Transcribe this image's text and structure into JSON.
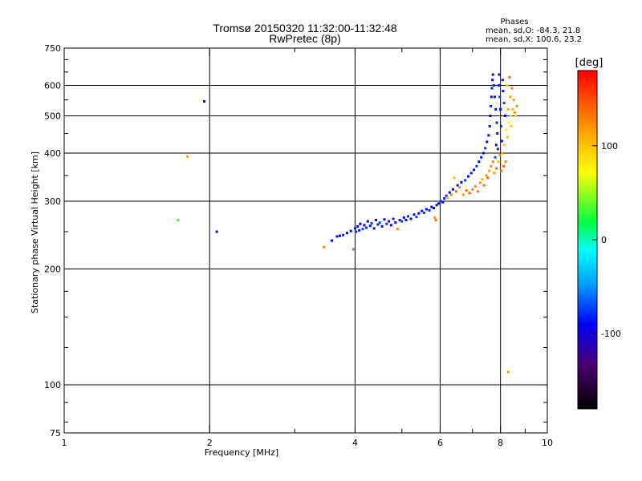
{
  "title": {
    "line1": "Tromsø 20150320 11:32:00-11:32:48",
    "line2": "RwPretec (8p)"
  },
  "phase_box": {
    "title": "Phases",
    "line_o": "mean, sd,O: -84.3, 21.8",
    "line_x": "mean, sd,X: 100.6, 23.2"
  },
  "chart_data": {
    "type": "scatter",
    "xlabel": "Frequency [MHz]",
    "ylabel": "Stationary phase Virtual Height [km]",
    "x_scale": "log",
    "y_scale": "log",
    "xlim": [
      1,
      10
    ],
    "ylim": [
      75,
      750
    ],
    "grid": true,
    "x_ticks": [
      {
        "value": 1,
        "label": "1"
      },
      {
        "value": 2,
        "label": "2"
      },
      {
        "value": 4,
        "label": "4"
      },
      {
        "value": 6,
        "label": "6"
      },
      {
        "value": 8,
        "label": "8"
      },
      {
        "value": 10,
        "label": "10"
      }
    ],
    "x_minor_ticks": [
      3,
      5,
      7,
      9
    ],
    "y_ticks": [
      {
        "value": 75,
        "label": "75"
      },
      {
        "value": 100,
        "label": "100"
      },
      {
        "value": 200,
        "label": "200"
      },
      {
        "value": 300,
        "label": "300"
      },
      {
        "value": 400,
        "label": "400"
      },
      {
        "value": 500,
        "label": "500"
      },
      {
        "value": 600,
        "label": "600"
      },
      {
        "value": 750,
        "label": "750"
      }
    ],
    "y_minor_ticks": [
      80,
      90,
      125,
      150,
      175,
      250,
      350,
      450,
      550,
      650,
      700
    ],
    "colorbar": {
      "label": "[deg]",
      "min": -180,
      "max": 180,
      "ticks": [
        {
          "value": 100,
          "label": "100"
        },
        {
          "value": 0,
          "label": "0"
        },
        {
          "value": -100,
          "label": "-100"
        }
      ]
    },
    "points": [
      {
        "x": 1.95,
        "y": 545,
        "phase": -100
      },
      {
        "x": 1.8,
        "y": 392,
        "phase": 120
      },
      {
        "x": 1.72,
        "y": 268,
        "phase": 30
      },
      {
        "x": 2.07,
        "y": 250,
        "phase": -100
      },
      {
        "x": 3.45,
        "y": 228,
        "phase": 130
      },
      {
        "x": 3.58,
        "y": 237,
        "phase": -90
      },
      {
        "x": 3.67,
        "y": 243,
        "phase": -85
      },
      {
        "x": 3.72,
        "y": 244,
        "phase": -95
      },
      {
        "x": 3.78,
        "y": 245,
        "phase": -80
      },
      {
        "x": 3.85,
        "y": 248,
        "phase": -100
      },
      {
        "x": 3.92,
        "y": 251,
        "phase": -90
      },
      {
        "x": 3.97,
        "y": 225,
        "phase": 140
      },
      {
        "x": 4.0,
        "y": 255,
        "phase": -85
      },
      {
        "x": 4.02,
        "y": 250,
        "phase": -75
      },
      {
        "x": 4.05,
        "y": 258,
        "phase": -95
      },
      {
        "x": 4.08,
        "y": 252,
        "phase": -80
      },
      {
        "x": 4.1,
        "y": 262,
        "phase": -88
      },
      {
        "x": 4.15,
        "y": 254,
        "phase": -70
      },
      {
        "x": 4.18,
        "y": 260,
        "phase": -92
      },
      {
        "x": 4.22,
        "y": 256,
        "phase": -78
      },
      {
        "x": 4.25,
        "y": 266,
        "phase": -100
      },
      {
        "x": 4.3,
        "y": 259,
        "phase": -84
      },
      {
        "x": 4.33,
        "y": 263,
        "phase": -72
      },
      {
        "x": 4.38,
        "y": 255,
        "phase": -90
      },
      {
        "x": 4.42,
        "y": 268,
        "phase": -96
      },
      {
        "x": 4.46,
        "y": 261,
        "phase": -82
      },
      {
        "x": 4.5,
        "y": 264,
        "phase": -70
      },
      {
        "x": 4.55,
        "y": 258,
        "phase": -88
      },
      {
        "x": 4.6,
        "y": 269,
        "phase": -94
      },
      {
        "x": 4.65,
        "y": 262,
        "phase": -76
      },
      {
        "x": 4.7,
        "y": 266,
        "phase": -86
      },
      {
        "x": 4.75,
        "y": 260,
        "phase": -98
      },
      {
        "x": 4.8,
        "y": 270,
        "phase": -80
      },
      {
        "x": 4.85,
        "y": 264,
        "phase": -90
      },
      {
        "x": 4.9,
        "y": 254,
        "phase": 125
      },
      {
        "x": 4.95,
        "y": 268,
        "phase": -84
      },
      {
        "x": 5.0,
        "y": 266,
        "phase": -74
      },
      {
        "x": 5.05,
        "y": 272,
        "phase": -96
      },
      {
        "x": 5.1,
        "y": 268,
        "phase": -86
      },
      {
        "x": 5.15,
        "y": 274,
        "phase": -80
      },
      {
        "x": 5.22,
        "y": 270,
        "phase": -92
      },
      {
        "x": 5.3,
        "y": 277,
        "phase": -84
      },
      {
        "x": 5.36,
        "y": 273,
        "phase": -70
      },
      {
        "x": 5.42,
        "y": 279,
        "phase": -98
      },
      {
        "x": 5.5,
        "y": 283,
        "phase": -86
      },
      {
        "x": 5.56,
        "y": 280,
        "phase": -76
      },
      {
        "x": 5.62,
        "y": 286,
        "phase": -92
      },
      {
        "x": 5.7,
        "y": 284,
        "phase": -80
      },
      {
        "x": 5.76,
        "y": 290,
        "phase": -88
      },
      {
        "x": 5.82,
        "y": 288,
        "phase": -100
      },
      {
        "x": 5.85,
        "y": 272,
        "phase": 120
      },
      {
        "x": 5.88,
        "y": 268,
        "phase": 135
      },
      {
        "x": 5.9,
        "y": 293,
        "phase": -82
      },
      {
        "x": 5.96,
        "y": 296,
        "phase": -90
      },
      {
        "x": 6.02,
        "y": 300,
        "phase": -74
      },
      {
        "x": 6.08,
        "y": 298,
        "phase": -96
      },
      {
        "x": 6.12,
        "y": 305,
        "phase": -84
      },
      {
        "x": 6.18,
        "y": 310,
        "phase": -78
      },
      {
        "x": 6.22,
        "y": 306,
        "phase": 110
      },
      {
        "x": 6.28,
        "y": 316,
        "phase": -92
      },
      {
        "x": 6.33,
        "y": 312,
        "phase": 125
      },
      {
        "x": 6.38,
        "y": 322,
        "phase": -86
      },
      {
        "x": 6.42,
        "y": 345,
        "phase": 100
      },
      {
        "x": 6.48,
        "y": 318,
        "phase": 140
      },
      {
        "x": 6.52,
        "y": 330,
        "phase": -80
      },
      {
        "x": 6.58,
        "y": 326,
        "phase": 130
      },
      {
        "x": 6.64,
        "y": 336,
        "phase": -94
      },
      {
        "x": 6.7,
        "y": 312,
        "phase": 120
      },
      {
        "x": 6.76,
        "y": 340,
        "phase": -70
      },
      {
        "x": 6.8,
        "y": 320,
        "phase": 135
      },
      {
        "x": 6.86,
        "y": 348,
        "phase": -88
      },
      {
        "x": 6.9,
        "y": 315,
        "phase": 145
      },
      {
        "x": 6.96,
        "y": 355,
        "phase": -82
      },
      {
        "x": 7.0,
        "y": 322,
        "phase": 128
      },
      {
        "x": 7.05,
        "y": 362,
        "phase": -96
      },
      {
        "x": 7.1,
        "y": 328,
        "phase": 118
      },
      {
        "x": 7.14,
        "y": 370,
        "phase": -76
      },
      {
        "x": 7.18,
        "y": 318,
        "phase": 138
      },
      {
        "x": 7.22,
        "y": 380,
        "phase": -90
      },
      {
        "x": 7.26,
        "y": 335,
        "phase": 125
      },
      {
        "x": 7.3,
        "y": 390,
        "phase": -84
      },
      {
        "x": 7.34,
        "y": 342,
        "phase": 110
      },
      {
        "x": 7.38,
        "y": 400,
        "phase": -98
      },
      {
        "x": 7.4,
        "y": 330,
        "phase": 132
      },
      {
        "x": 7.44,
        "y": 412,
        "phase": -80
      },
      {
        "x": 7.48,
        "y": 350,
        "phase": 120
      },
      {
        "x": 7.5,
        "y": 428,
        "phase": -88
      },
      {
        "x": 7.53,
        "y": 345,
        "phase": 140
      },
      {
        "x": 7.56,
        "y": 445,
        "phase": -92
      },
      {
        "x": 7.58,
        "y": 360,
        "phase": 115
      },
      {
        "x": 7.6,
        "y": 470,
        "phase": -84
      },
      {
        "x": 7.62,
        "y": 500,
        "phase": -100
      },
      {
        "x": 7.64,
        "y": 530,
        "phase": -76
      },
      {
        "x": 7.65,
        "y": 370,
        "phase": 125
      },
      {
        "x": 7.66,
        "y": 560,
        "phase": -90
      },
      {
        "x": 7.68,
        "y": 590,
        "phase": -82
      },
      {
        "x": 7.7,
        "y": 620,
        "phase": -96
      },
      {
        "x": 7.72,
        "y": 640,
        "phase": -86
      },
      {
        "x": 7.72,
        "y": 380,
        "phase": 130
      },
      {
        "x": 7.75,
        "y": 600,
        "phase": -80
      },
      {
        "x": 7.76,
        "y": 355,
        "phase": 118
      },
      {
        "x": 7.78,
        "y": 560,
        "phase": -94
      },
      {
        "x": 7.8,
        "y": 390,
        "phase": -70
      },
      {
        "x": 7.82,
        "y": 520,
        "phase": -88
      },
      {
        "x": 7.84,
        "y": 420,
        "phase": -100
      },
      {
        "x": 7.85,
        "y": 365,
        "phase": 140
      },
      {
        "x": 7.86,
        "y": 480,
        "phase": -82
      },
      {
        "x": 7.88,
        "y": 450,
        "phase": -92
      },
      {
        "x": 7.9,
        "y": 410,
        "phase": -78
      },
      {
        "x": 7.92,
        "y": 380,
        "phase": 105
      },
      {
        "x": 7.94,
        "y": 600,
        "phase": -86
      },
      {
        "x": 7.95,
        "y": 640,
        "phase": -98
      },
      {
        "x": 7.97,
        "y": 560,
        "phase": -74
      },
      {
        "x": 7.98,
        "y": 395,
        "phase": 125
      },
      {
        "x": 8.0,
        "y": 520,
        "phase": -90
      },
      {
        "x": 8.02,
        "y": 470,
        "phase": -84
      },
      {
        "x": 8.03,
        "y": 360,
        "phase": 135
      },
      {
        "x": 8.05,
        "y": 430,
        "phase": -96
      },
      {
        "x": 8.06,
        "y": 400,
        "phase": 110
      },
      {
        "x": 8.08,
        "y": 620,
        "phase": -80
      },
      {
        "x": 8.1,
        "y": 580,
        "phase": -88
      },
      {
        "x": 8.12,
        "y": 370,
        "phase": 140
      },
      {
        "x": 8.14,
        "y": 540,
        "phase": -70
      },
      {
        "x": 8.15,
        "y": 420,
        "phase": 95
      },
      {
        "x": 8.18,
        "y": 500,
        "phase": -92
      },
      {
        "x": 8.2,
        "y": 380,
        "phase": 128
      },
      {
        "x": 8.22,
        "y": 460,
        "phase": 80
      },
      {
        "x": 8.25,
        "y": 600,
        "phase": 90
      },
      {
        "x": 8.28,
        "y": 440,
        "phase": 100
      },
      {
        "x": 8.3,
        "y": 520,
        "phase": 110
      },
      {
        "x": 8.32,
        "y": 480,
        "phase": 70
      },
      {
        "x": 8.35,
        "y": 630,
        "phase": 140
      },
      {
        "x": 8.38,
        "y": 560,
        "phase": 120
      },
      {
        "x": 8.4,
        "y": 500,
        "phase": 60
      },
      {
        "x": 8.42,
        "y": 470,
        "phase": 95
      },
      {
        "x": 8.45,
        "y": 590,
        "phase": 130
      },
      {
        "x": 8.48,
        "y": 520,
        "phase": 105
      },
      {
        "x": 8.52,
        "y": 550,
        "phase": 115
      },
      {
        "x": 8.56,
        "y": 510,
        "phase": 125
      },
      {
        "x": 8.6,
        "y": 500,
        "phase": 85
      },
      {
        "x": 8.65,
        "y": 530,
        "phase": 130
      },
      {
        "x": 8.3,
        "y": 108,
        "phase": 120
      }
    ]
  }
}
